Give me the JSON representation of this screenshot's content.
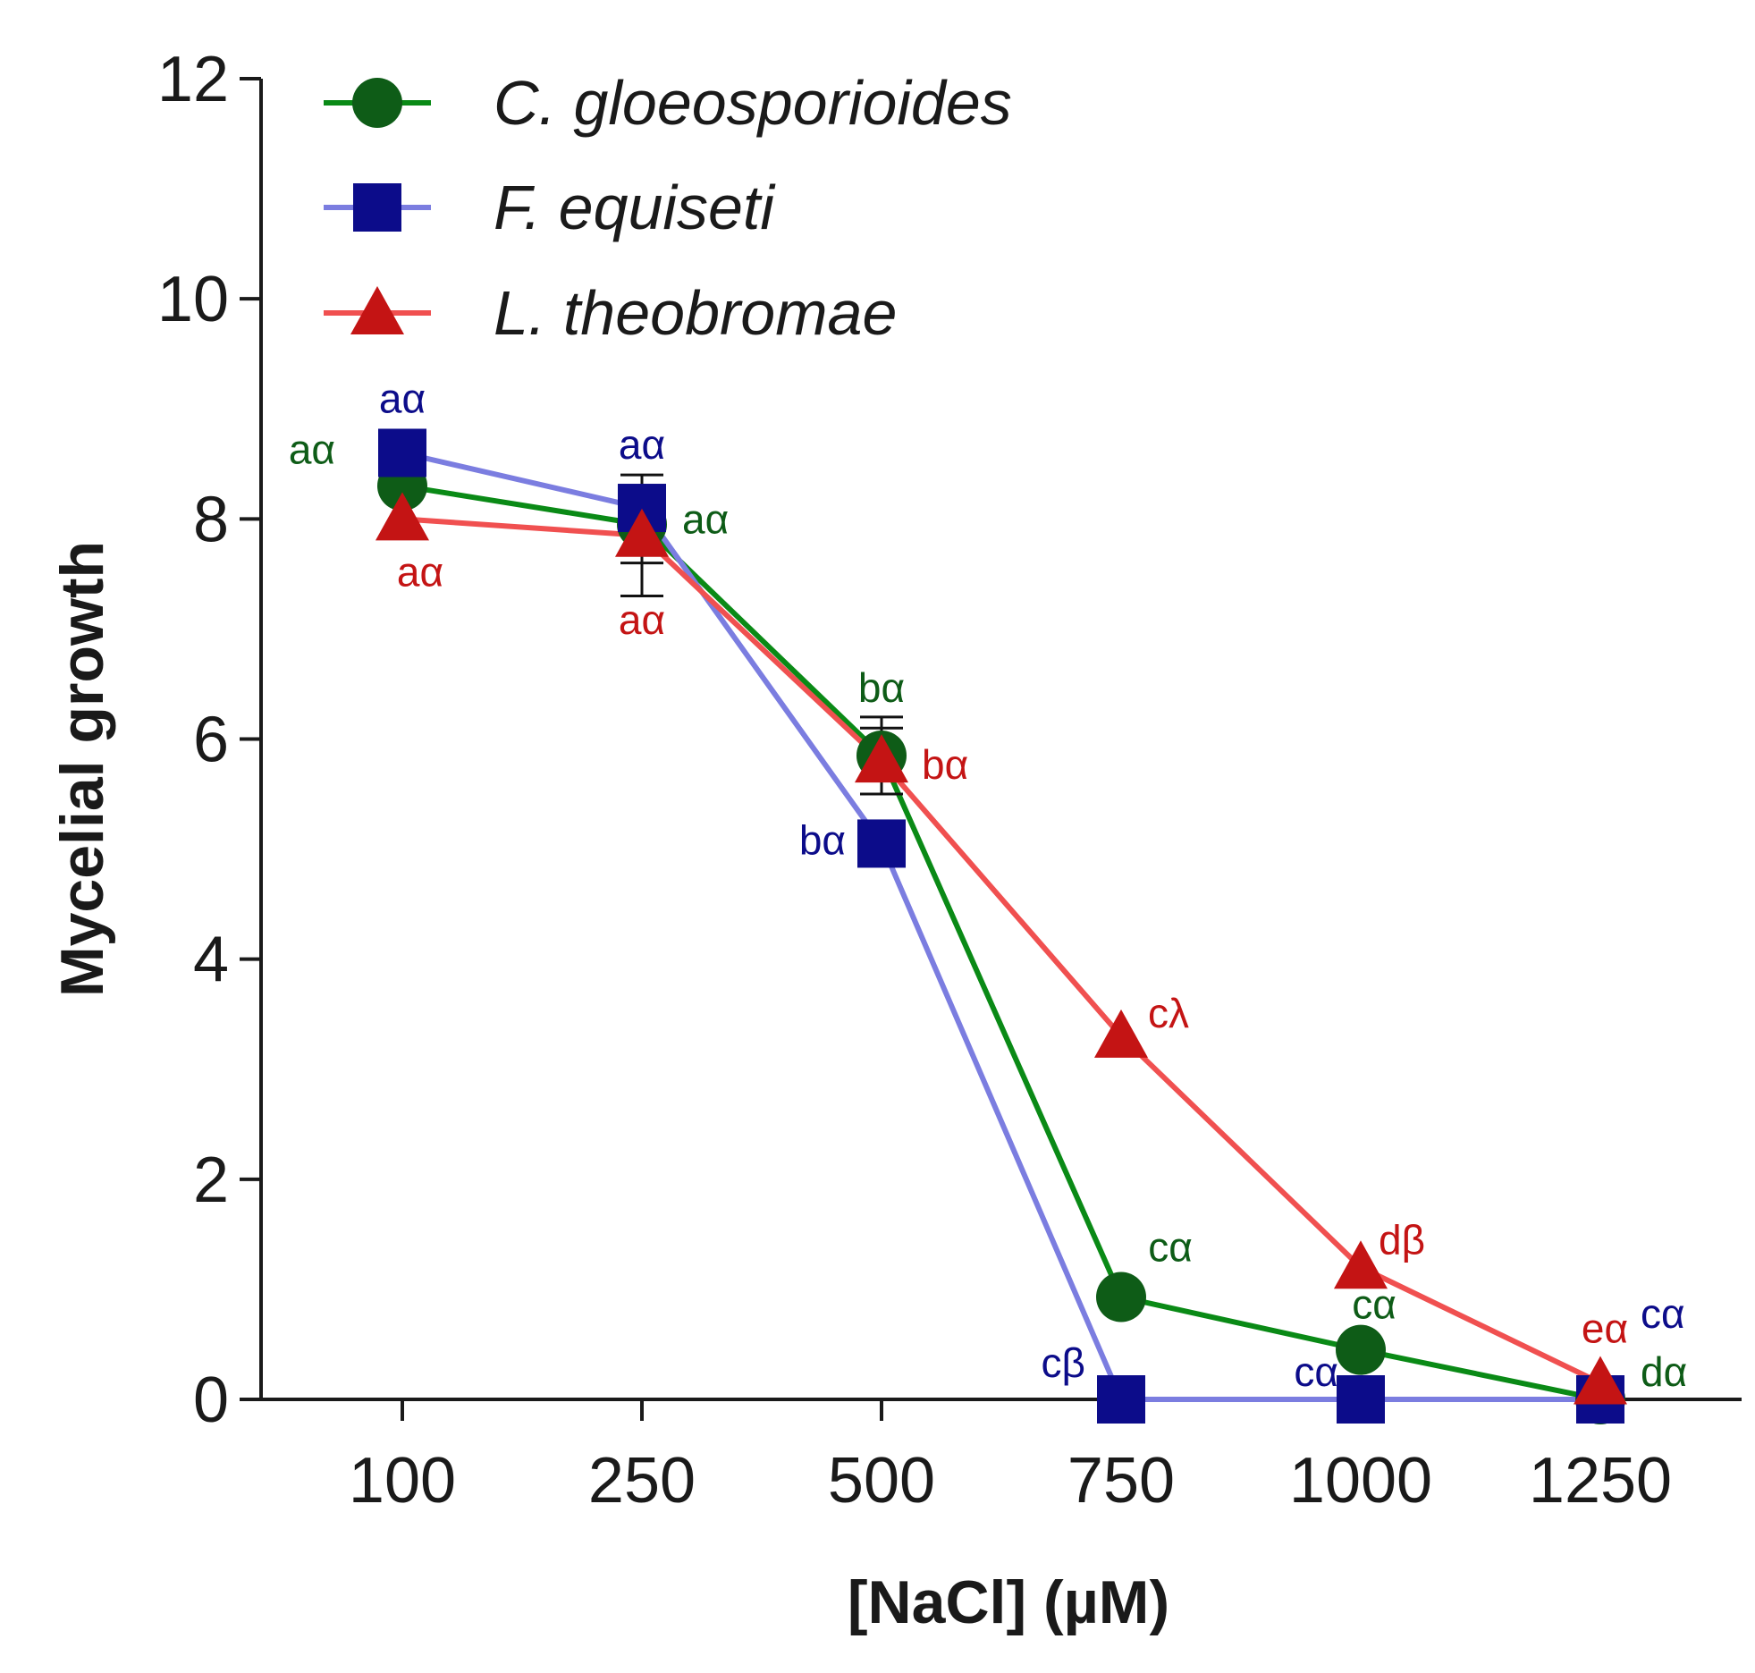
{
  "chart_data": {
    "type": "line",
    "xlabel": "[NaCl] (µM)",
    "ylabel": "Mycelial growth",
    "categories": [
      "100",
      "250",
      "500",
      "750",
      "1000",
      "1250"
    ],
    "ylim": [
      0,
      12
    ],
    "yticks": [
      0,
      2,
      4,
      6,
      8,
      10,
      12
    ],
    "grid": false,
    "legend_position": "top-left",
    "series": [
      {
        "name": "C. gloeosporioides",
        "color": "#0a8a16",
        "marker_color": "#0e5c17",
        "marker": "circle",
        "values": [
          8.3,
          7.95,
          5.85,
          0.93,
          0.45,
          0.0
        ],
        "error": [
          0.0,
          0.35,
          0.35,
          0.0,
          0.0,
          0.0
        ],
        "labels": [
          "aα",
          "aα",
          "bα",
          "cα",
          "cα",
          "dα"
        ]
      },
      {
        "name": "F. equiseti",
        "color": "#7b7de0",
        "marker_color": "#0c0c8a",
        "marker": "square",
        "values": [
          8.6,
          8.1,
          5.05,
          0.0,
          0.0,
          0.0
        ],
        "error": [
          0.0,
          0.2,
          0.0,
          0.0,
          0.0,
          0.0
        ],
        "labels": [
          "aα",
          "aα",
          "bα",
          "cβ",
          "cα",
          "cα"
        ]
      },
      {
        "name": "L. theobromae",
        "color": "#f05050",
        "marker_color": "#c41414",
        "marker": "triangle",
        "values": [
          8.0,
          7.85,
          5.8,
          3.3,
          1.2,
          0.15
        ],
        "error": [
          0.0,
          0.55,
          0.3,
          0.0,
          0.0,
          0.0
        ],
        "labels": [
          "aα",
          "aα",
          "bα",
          "cλ",
          "dβ",
          "eα"
        ]
      }
    ]
  }
}
